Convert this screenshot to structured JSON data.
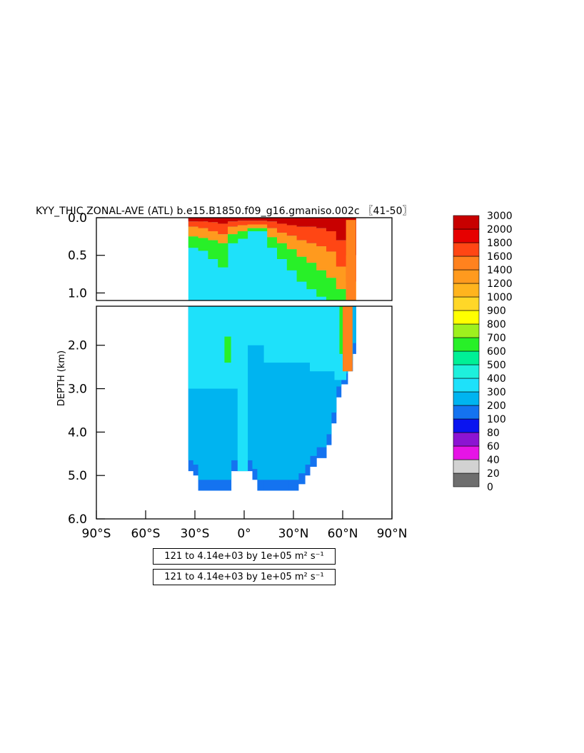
{
  "chart_data": {
    "type": "heatmap",
    "title": "KYY_THIC ZONAL-AVE (ATL) b.e15.B1850.f09_g16.gmaniso.002c 〖41-50〗",
    "ylabel": "DEPTH (km)",
    "xlabel": "",
    "xlim": [
      -90,
      90
    ],
    "ylim_upper_panel": [
      0.0,
      1.1
    ],
    "ylim_lower_panel": [
      1.1,
      6.0
    ],
    "x_ticks": [
      -90,
      -60,
      -30,
      0,
      30,
      60,
      90
    ],
    "x_tick_labels": [
      "90°S",
      "60°S",
      "30°S",
      "0°",
      "30°N",
      "60°N",
      "90°N"
    ],
    "y_ticks_upper": [
      0.0,
      0.5,
      1.0
    ],
    "y_tick_labels_upper": [
      "0.0",
      "0.5",
      "1.0"
    ],
    "y_ticks_lower": [
      2.0,
      3.0,
      4.0,
      5.0,
      6.0
    ],
    "y_tick_labels_lower": [
      "2.0",
      "3.0",
      "4.0",
      "5.0",
      "6.0"
    ],
    "colorbar_levels": [
      0,
      20,
      40,
      60,
      80,
      100,
      200,
      300,
      400,
      500,
      600,
      700,
      800,
      900,
      1000,
      1200,
      1400,
      1600,
      1800,
      2000,
      3000
    ],
    "colorbar_labels": [
      "0",
      "20",
      "40",
      "60",
      "80",
      "100",
      "200",
      "300",
      "400",
      "500",
      "600",
      "700",
      "800",
      "900",
      "1000",
      "1200",
      "1400",
      "1600",
      "1800",
      "2000",
      "3000"
    ],
    "colorbar_colors": [
      "#6e6e6e",
      "#d2d2d2",
      "#e614e6",
      "#8c14d2",
      "#0a14f0",
      "#1473f0",
      "#00b4f0",
      "#1ee1fa",
      "#1ef0dc",
      "#00f096",
      "#28f028",
      "#9ef01e",
      "#ffff00",
      "#ffd728",
      "#ffb41e",
      "#ff9a1e",
      "#ff821e",
      "#ff4614",
      "#e60000",
      "#c80000"
    ],
    "data_range_note": "121 to 4.14e+03 by 1e+05 m² s⁻¹"
  },
  "infobox1": {
    "text": "121 to 4.14e+03 by 1e+05 m² s⁻¹"
  },
  "infobox2": {
    "text": "121 to 4.14e+03 by 1e+05 m² s⁻¹"
  }
}
